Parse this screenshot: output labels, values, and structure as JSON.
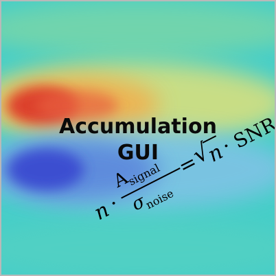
{
  "title": {
    "line1": "Accumulation",
    "line2": "GUI"
  },
  "formula": {
    "n": "n",
    "dot": "·",
    "numerator": "A",
    "numerator_sub": "signal",
    "denominator": "σ",
    "denominator_sub": "noise",
    "equals": "=",
    "sqrt": "√",
    "snr": "SNR"
  },
  "colors": {
    "background": "#44d0c8",
    "warm_band": "#e9e070",
    "hot": "#d8322a",
    "cold_band": "#86c4e6",
    "cold": "#3a4fd4",
    "border": "#b9b9b9"
  }
}
